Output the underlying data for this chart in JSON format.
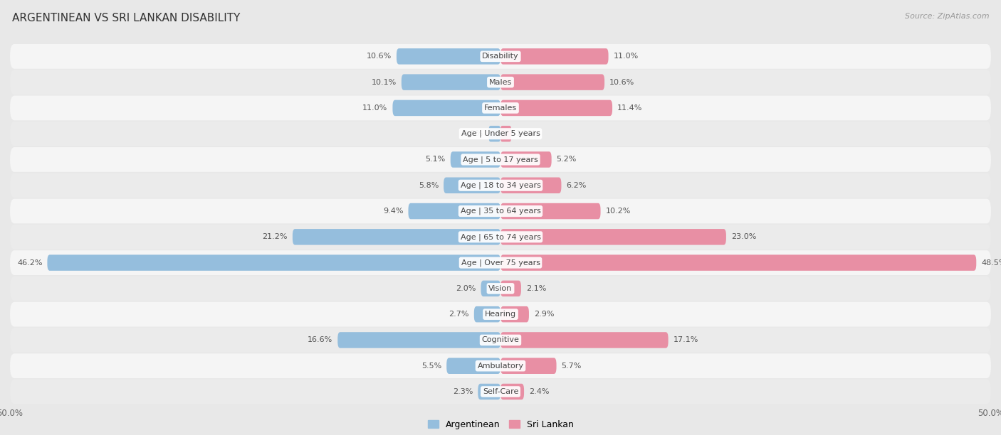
{
  "title": "ARGENTINEAN VS SRI LANKAN DISABILITY",
  "source": "Source: ZipAtlas.com",
  "categories": [
    "Disability",
    "Males",
    "Females",
    "Age | Under 5 years",
    "Age | 5 to 17 years",
    "Age | 18 to 34 years",
    "Age | 35 to 64 years",
    "Age | 65 to 74 years",
    "Age | Over 75 years",
    "Vision",
    "Hearing",
    "Cognitive",
    "Ambulatory",
    "Self-Care"
  ],
  "argentinean": [
    10.6,
    10.1,
    11.0,
    1.2,
    5.1,
    5.8,
    9.4,
    21.2,
    46.2,
    2.0,
    2.7,
    16.6,
    5.5,
    2.3
  ],
  "sri_lankan": [
    11.0,
    10.6,
    11.4,
    1.1,
    5.2,
    6.2,
    10.2,
    23.0,
    48.5,
    2.1,
    2.9,
    17.1,
    5.7,
    2.4
  ],
  "arg_color": "#95bedd",
  "sri_color": "#e88fa4",
  "bg_color": "#e8e8e8",
  "row_color_even": "#f5f5f5",
  "row_color_odd": "#ebebeb",
  "title_fontsize": 11,
  "source_fontsize": 8,
  "label_fontsize": 8,
  "cat_fontsize": 8,
  "axis_max": 50.0,
  "bar_height": 0.62,
  "legend_labels": [
    "Argentinean",
    "Sri Lankan"
  ]
}
